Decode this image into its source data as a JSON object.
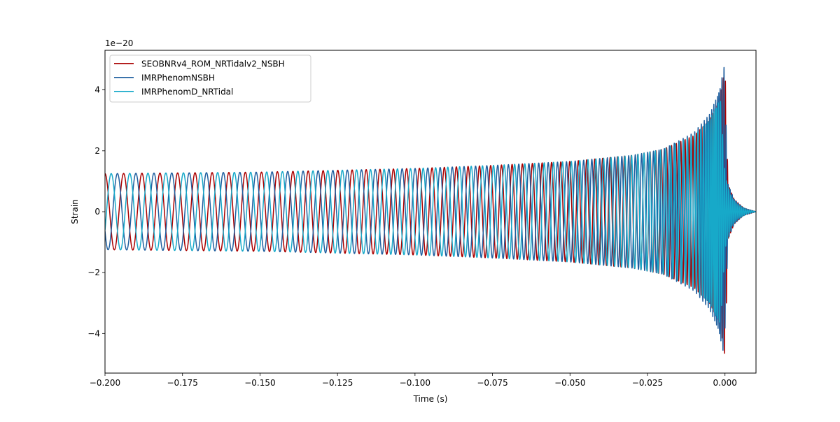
{
  "chart_data": {
    "type": "line",
    "title": "",
    "xlabel": "Time (s)",
    "ylabel": "Strain",
    "offset_text": "1e−20",
    "xlim": [
      -0.2,
      0.01
    ],
    "ylim": [
      -5.3,
      5.3
    ],
    "xticks": [
      -0.2,
      -0.175,
      -0.15,
      -0.125,
      -0.1,
      -0.075,
      -0.05,
      -0.025,
      0.0
    ],
    "xtick_labels": [
      "−0.200",
      "−0.175",
      "−0.150",
      "−0.125",
      "−0.100",
      "−0.075",
      "−0.050",
      "−0.025",
      "0.000"
    ],
    "yticks": [
      -4,
      -2,
      0,
      2,
      4
    ],
    "ytick_labels": [
      "−4",
      "−2",
      "0",
      "2",
      "4"
    ],
    "grid": false,
    "legend_position": "top-left",
    "scale": "1e-20",
    "series": [
      {
        "name": "SEOBNRv4_ROM_NRTidalv2_NSBH",
        "color": "#aa0000",
        "phase": 0.0,
        "merger_time": 0.0,
        "envelope": {
          "t": [
            -0.2,
            -0.15,
            -0.1,
            -0.075,
            -0.05,
            -0.03,
            -0.02,
            -0.01,
            -0.005,
            -0.002,
            -0.0008,
            0.0,
            0.001,
            0.003,
            0.006,
            0.01
          ],
          "amp": [
            1.25,
            1.3,
            1.42,
            1.52,
            1.65,
            1.85,
            2.05,
            2.5,
            3.0,
            3.6,
            4.2,
            4.8,
            0.9,
            0.4,
            0.12,
            0.0
          ]
        }
      },
      {
        "name": "IMRPhenomNSBH",
        "color": "#1f5f9f",
        "phase": 2.1,
        "merger_time": -0.0003,
        "envelope": {
          "t": [
            -0.2,
            -0.15,
            -0.1,
            -0.075,
            -0.05,
            -0.03,
            -0.02,
            -0.01,
            -0.005,
            -0.002,
            -0.0008,
            -0.0003,
            0.001,
            0.003,
            0.006,
            0.01
          ],
          "amp": [
            1.25,
            1.3,
            1.42,
            1.52,
            1.65,
            1.85,
            2.05,
            2.6,
            3.2,
            3.9,
            4.5,
            4.75,
            0.9,
            0.4,
            0.12,
            0.0
          ]
        }
      },
      {
        "name": "IMRPhenomD_NRTidal",
        "color": "#17a9c9",
        "phase": 4.2,
        "merger_time": -0.0015,
        "envelope": {
          "t": [
            -0.2,
            -0.15,
            -0.1,
            -0.075,
            -0.05,
            -0.03,
            -0.02,
            -0.01,
            -0.005,
            -0.003,
            -0.0015,
            0.0,
            0.002,
            0.004,
            0.007,
            0.01
          ],
          "amp": [
            1.25,
            1.3,
            1.42,
            1.52,
            1.65,
            1.85,
            2.05,
            2.5,
            3.0,
            3.4,
            3.7,
            1.2,
            0.5,
            0.25,
            0.08,
            0.0
          ]
        }
      }
    ]
  }
}
